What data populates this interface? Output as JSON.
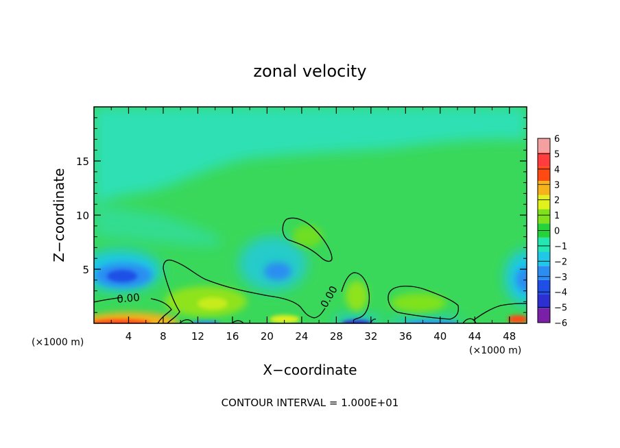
{
  "chart_data": {
    "type": "heatmap",
    "title": "zonal velocity",
    "xlabel": "X−coordinate",
    "ylabel": "Z−coordinate",
    "x_unit_note_left": "(×1000 m)",
    "x_unit_note_right": "(×1000 m)",
    "footer": "CONTOUR INTERVAL = 1.000E+01",
    "xlim": [
      0,
      50
    ],
    "ylim": [
      0,
      20
    ],
    "x_ticks": [
      4,
      8,
      12,
      16,
      20,
      24,
      28,
      32,
      36,
      40,
      44,
      48
    ],
    "y_ticks": [
      5,
      10,
      15
    ],
    "contour_labels": [
      {
        "text": "0.00",
        "x": 4.0,
        "y": 2.0,
        "angle": -5
      },
      {
        "text": "0.00",
        "x": 27.5,
        "y": 2.3,
        "angle": -60
      }
    ],
    "colorbar": {
      "levels": [
        -6,
        -5,
        -4,
        -3,
        -2,
        -1,
        0,
        1,
        2,
        3,
        4,
        5,
        6
      ],
      "colors": [
        "#7a1fa8",
        "#2e2fd0",
        "#1f4fe6",
        "#2b8df2",
        "#1fc8e6",
        "#24e6b0",
        "#25d23a",
        "#7fe21c",
        "#e2f01c",
        "#f5b21c",
        "#ff4a12",
        "#ff3d3d",
        "#f4a0a0"
      ]
    },
    "features": [
      {
        "name": "background",
        "value": 0.2
      },
      {
        "name": "upper-left weak easterly",
        "x": 5,
        "z": 15,
        "value": -1.4
      },
      {
        "name": "lower-left jet (negative)",
        "x": 4,
        "z": 4.8,
        "value": -4.0
      },
      {
        "name": "mid negative cell",
        "x": 21,
        "z": 4.8,
        "value": -2.9
      },
      {
        "name": "right-edge negative cell",
        "x": 50,
        "z": 4.0,
        "value": -3.4
      },
      {
        "name": "surface positive band",
        "x": 4,
        "z": 0.6,
        "value": 4.5
      },
      {
        "name": "positive lobe",
        "x": 14,
        "z": 2.5,
        "value": 1.6
      },
      {
        "name": "positive lobe",
        "x": 29,
        "z": 3.0,
        "value": 1.2
      },
      {
        "name": "positive lobe",
        "x": 38,
        "z": 2.4,
        "value": 1.0
      },
      {
        "name": "positive blob",
        "x": 25,
        "z": 7.5,
        "value": 0.8
      }
    ]
  }
}
